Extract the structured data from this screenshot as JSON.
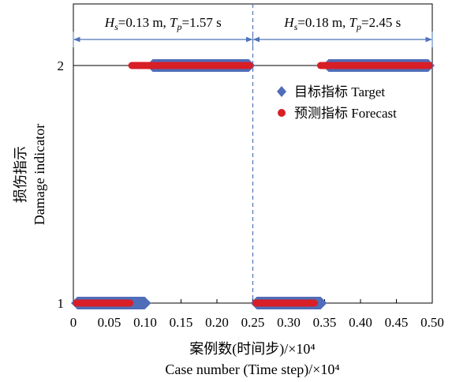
{
  "chart_data": {
    "type": "scatter",
    "xlabel_lines": [
      "案例数(时间步)/×10⁴",
      "Case number (Time step)/×10⁴"
    ],
    "ylabel_lines": [
      "损伤指示",
      "Damage indicator"
    ],
    "x_ticks": [
      "0",
      "0.05",
      "0.10",
      "0.15",
      "0.20",
      "0.25",
      "0.30",
      "0.35",
      "0.40",
      "0.45",
      "0.50"
    ],
    "y_ticks": [
      "1",
      "2"
    ],
    "xlim": [
      0,
      0.5
    ],
    "ylim": [
      1,
      2
    ],
    "grid": false,
    "legend_position": "upper-right",
    "series": [
      {
        "name": "目标指标 Target",
        "marker": "diamond",
        "color": "#4F6DB8",
        "segments": [
          {
            "x_start": 0.0,
            "x_end": 0.105,
            "y": 1
          },
          {
            "x_start": 0.105,
            "x_end": 0.25,
            "y": 2
          },
          {
            "x_start": 0.25,
            "x_end": 0.35,
            "y": 1
          },
          {
            "x_start": 0.35,
            "x_end": 0.5,
            "y": 2
          }
        ]
      },
      {
        "name": "预测指标 Forecast",
        "marker": "circle",
        "color": "#D81E26",
        "segments": [
          {
            "x_start": 0.0,
            "x_end": 0.083,
            "y": 1
          },
          {
            "x_start": 0.077,
            "x_end": 0.25,
            "y": 2
          },
          {
            "x_start": 0.25,
            "x_end": 0.34,
            "y": 1
          },
          {
            "x_start": 0.34,
            "x_end": 0.5,
            "y": 2
          }
        ]
      }
    ],
    "vertical_lines": [
      {
        "x": 0.25,
        "style": "dashed",
        "color": "#4F73B8"
      }
    ],
    "regions": [
      {
        "x_start": 0.0,
        "x_end": 0.25,
        "label_parts": [
          "H",
          "s",
          "=0.13 m, ",
          "T",
          "p",
          "=1.57 s"
        ]
      },
      {
        "x_start": 0.25,
        "x_end": 0.5,
        "label_parts": [
          "H",
          "s",
          "=0.18 m, ",
          "T",
          "p",
          "=2.45 s"
        ]
      }
    ]
  }
}
